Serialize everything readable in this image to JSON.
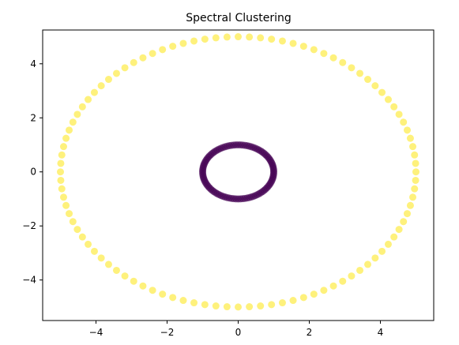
{
  "chart_data": {
    "type": "scatter",
    "title": "Spectral Clustering",
    "xlabel": "",
    "ylabel": "",
    "xlim": [
      -5.5,
      5.5
    ],
    "ylim": [
      -5.5,
      5.25
    ],
    "xticks": [
      -4,
      -2,
      0,
      2,
      4
    ],
    "yticks": [
      -4,
      -2,
      0,
      2,
      4
    ],
    "xtick_labels": [
      "−4",
      "−2",
      "0",
      "2",
      "4"
    ],
    "ytick_labels": [
      "−4",
      "−2",
      "0",
      "2",
      "4"
    ],
    "grid": false,
    "legend": "none",
    "series": [
      {
        "cluster": 0,
        "color": "#440154",
        "shape": "circle",
        "center": [
          0,
          0
        ],
        "radius": 1.0,
        "n_points": 100
      },
      {
        "cluster": 1,
        "color": "#fde725",
        "shape": "circle",
        "center": [
          0,
          0
        ],
        "radius": 5.0,
        "n_points": 100
      }
    ]
  }
}
